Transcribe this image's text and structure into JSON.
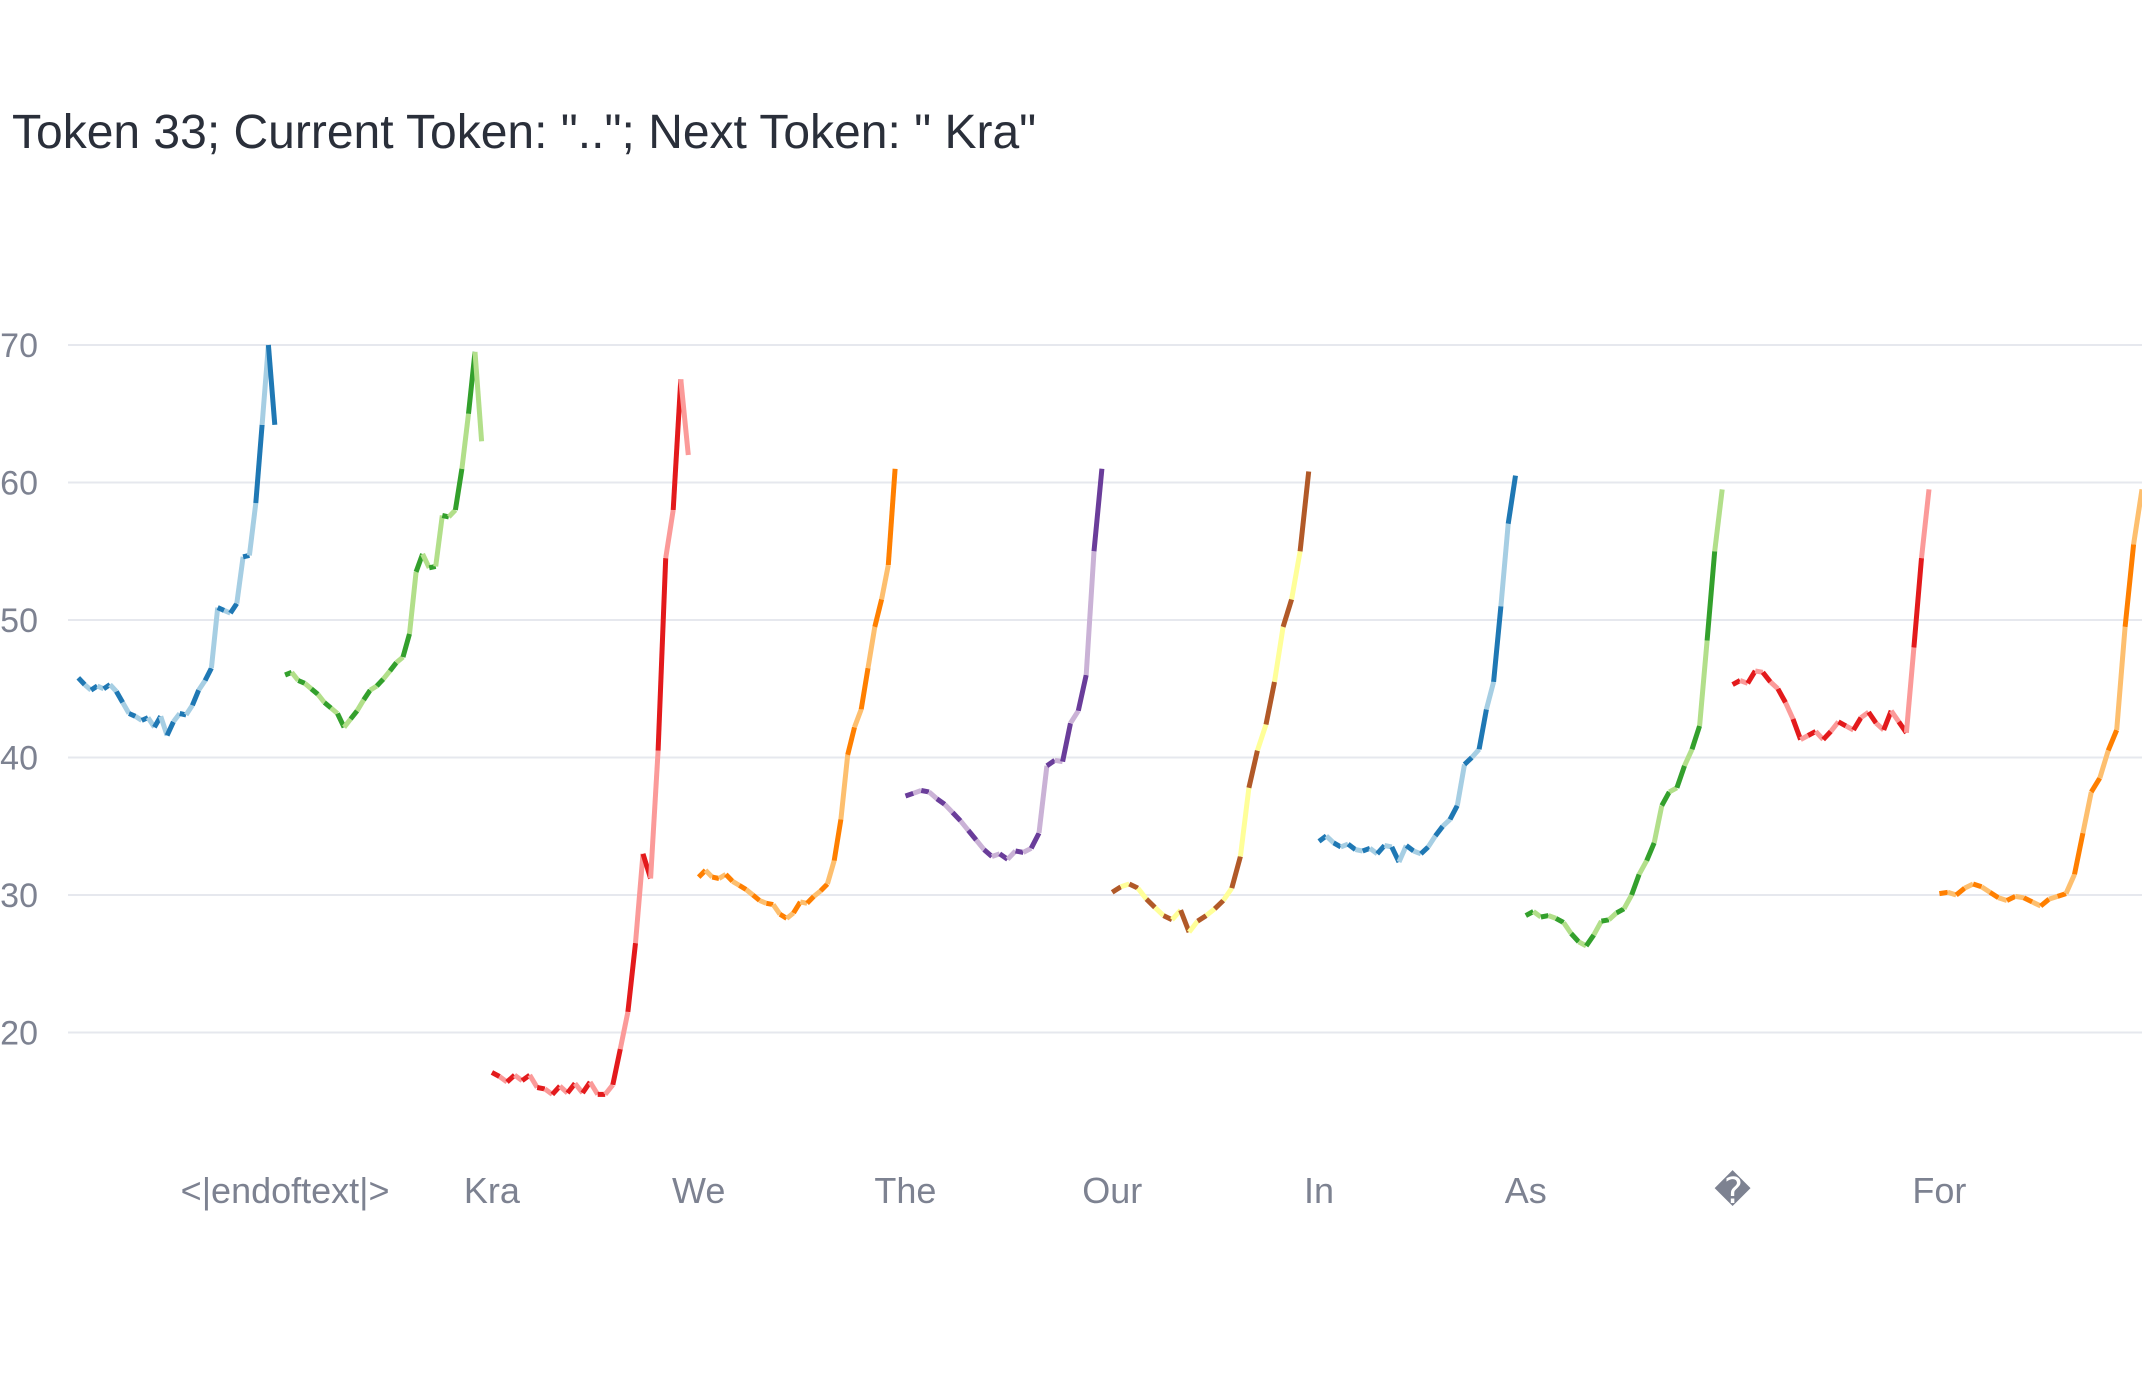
{
  "chart_data": {
    "type": "line",
    "title": "Token 33; Current Token: \"..\"; Next Token: \" Kra\"",
    "xlabel": "",
    "ylabel": "",
    "ylim": [
      10,
      74
    ],
    "yticks": [
      20,
      30,
      40,
      50,
      60,
      70
    ],
    "xlim": [
      -0.05,
      9.98
    ],
    "x_tick_positions": [
      1,
      2,
      3,
      4,
      5,
      6,
      7,
      8,
      9
    ],
    "x_tick_labels": [
      "<|endoftext|>",
      "Kra",
      "We",
      "The",
      "Our",
      "In",
      "As",
      "�",
      "For"
    ],
    "grid": true,
    "legend": "none",
    "series": [
      {
        "color": "#1f78b4",
        "light": "#a6cee3",
        "x_start": 0.0,
        "x_end": 0.95,
        "values": [
          45.8,
          45.3,
          44.9,
          45.2,
          45.0,
          45.3,
          44.8,
          44.0,
          43.2,
          43.0,
          42.7,
          42.9,
          42.2,
          43.0,
          41.6,
          42.6,
          43.2,
          43.1,
          43.8,
          44.9,
          45.6,
          46.5,
          50.9,
          50.7,
          50.5,
          51.2,
          54.6,
          54.7,
          58.5,
          64.2,
          70.0,
          64.2
        ]
      },
      {
        "color": "#33a02c",
        "light": "#b2df8a",
        "x_start": 1.0,
        "x_end": 1.95,
        "values": [
          46.0,
          46.2,
          45.6,
          45.4,
          45.0,
          44.6,
          44.0,
          43.6,
          43.2,
          42.2,
          42.8,
          43.4,
          44.2,
          44.9,
          45.2,
          45.7,
          46.3,
          46.9,
          47.3,
          49.0,
          53.5,
          54.8,
          53.8,
          53.9,
          57.6,
          57.5,
          58.0,
          61.0,
          65.0,
          69.5,
          63.0
        ]
      },
      {
        "color": "#e31a1c",
        "light": "#fb9a99",
        "x_start": 2.0,
        "x_end": 2.95,
        "values": [
          17.1,
          16.8,
          16.4,
          16.9,
          16.5,
          16.9,
          16.0,
          15.9,
          15.5,
          16.1,
          15.6,
          16.3,
          15.6,
          16.4,
          15.5,
          15.5,
          16.2,
          18.8,
          21.5,
          26.5,
          33.0,
          31.2,
          40.5,
          54.5,
          58.0,
          67.5,
          62.0
        ]
      },
      {
        "color": "#ff7f00",
        "light": "#fdbf6f",
        "x_start": 3.0,
        "x_end": 3.95,
        "values": [
          31.3,
          31.8,
          31.3,
          31.2,
          31.5,
          31.0,
          30.7,
          30.4,
          30.0,
          29.6,
          29.4,
          29.3,
          28.6,
          28.3,
          28.7,
          29.5,
          29.4,
          29.9,
          30.3,
          30.8,
          32.5,
          35.5,
          40.2,
          42.2,
          43.5,
          46.5,
          49.5,
          51.5,
          54.0,
          61.0
        ]
      },
      {
        "color": "#6a3d9a",
        "light": "#cab2d6",
        "x_start": 4.0,
        "x_end": 4.95,
        "values": [
          37.2,
          37.4,
          37.6,
          37.5,
          37.0,
          36.6,
          36.0,
          35.4,
          34.7,
          34.0,
          33.3,
          32.8,
          33.0,
          32.6,
          33.2,
          33.1,
          33.4,
          34.5,
          39.4,
          39.8,
          39.7,
          42.5,
          43.4,
          46.0,
          55.0,
          61.0
        ]
      },
      {
        "color": "#b15928",
        "light": "#ffff99",
        "x_start": 5.0,
        "x_end": 5.95,
        "values": [
          30.2,
          30.6,
          30.8,
          30.5,
          29.7,
          29.1,
          28.5,
          28.2,
          28.9,
          27.3,
          28.1,
          28.5,
          29.0,
          29.6,
          30.5,
          32.8,
          37.8,
          40.5,
          42.4,
          45.5,
          49.5,
          51.5,
          55.0,
          60.8
        ]
      },
      {
        "color": "#1f78b4",
        "light": "#a6cee3",
        "x_start": 6.0,
        "x_end": 6.95,
        "values": [
          33.9,
          34.3,
          33.8,
          33.5,
          33.7,
          33.3,
          33.2,
          33.4,
          33.0,
          33.6,
          33.5,
          32.4,
          33.6,
          33.2,
          33.0,
          33.5,
          34.3,
          35.0,
          35.5,
          36.5,
          39.5,
          40.0,
          40.6,
          43.5,
          45.5,
          51.0,
          57.0,
          60.5
        ]
      },
      {
        "color": "#33a02c",
        "light": "#b2df8a",
        "x_start": 7.0,
        "x_end": 7.95,
        "values": [
          28.5,
          28.8,
          28.4,
          28.5,
          28.3,
          28.0,
          27.2,
          26.6,
          26.3,
          27.1,
          28.1,
          28.2,
          28.7,
          29.0,
          30.0,
          31.5,
          32.5,
          33.8,
          36.5,
          37.5,
          37.8,
          39.4,
          40.6,
          42.3,
          48.5,
          55.0,
          59.5
        ]
      },
      {
        "color": "#e31a1c",
        "light": "#fb9a99",
        "x_start": 8.0,
        "x_end": 8.95,
        "values": [
          45.3,
          45.6,
          45.4,
          46.3,
          46.2,
          45.5,
          45.0,
          44.0,
          42.8,
          41.3,
          41.6,
          41.9,
          41.3,
          41.9,
          42.6,
          42.3,
          42.0,
          42.9,
          43.3,
          42.5,
          42.0,
          43.4,
          42.6,
          41.8,
          48.0,
          54.5,
          59.5
        ]
      },
      {
        "color": "#ff7f00",
        "light": "#fdbf6f",
        "x_start": 9.0,
        "x_end": 9.98,
        "values": [
          30.1,
          30.2,
          30.0,
          30.5,
          30.8,
          30.6,
          30.2,
          29.8,
          29.6,
          29.9,
          29.8,
          29.5,
          29.2,
          29.7,
          29.9,
          30.1,
          31.5,
          34.5,
          37.5,
          38.5,
          40.5,
          42.0,
          49.5,
          55.5,
          59.5
        ]
      }
    ]
  }
}
